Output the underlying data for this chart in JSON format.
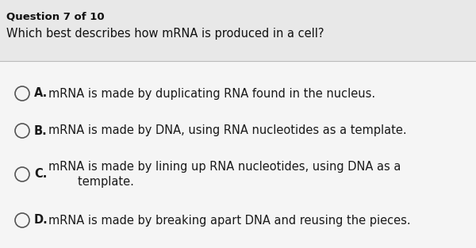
{
  "bg_color": "#e8e8e8",
  "body_bg": "#f5f5f5",
  "question_number": "Question 7 of 10",
  "question_text": "Which best describes how mRNA is produced in a cell?",
  "options": [
    {
      "letter": "A.",
      "text": "mRNA is made by duplicating RNA found in the nucleus."
    },
    {
      "letter": "B.",
      "text": "mRNA is made by DNA, using RNA nucleotides as a template."
    },
    {
      "letter": "C.",
      "text": "mRNA is made by lining up RNA nucleotides, using DNA as a\n        template."
    },
    {
      "letter": "D.",
      "text": "mRNA is made by breaking apart DNA and reusing the pieces."
    }
  ],
  "question_number_fontsize": 9.5,
  "question_text_fontsize": 10.5,
  "option_fontsize": 10.5,
  "text_color": "#1a1a1a",
  "circle_color": "#555555",
  "divider_color": "#bbbbbb",
  "header_text_color": "#111111"
}
